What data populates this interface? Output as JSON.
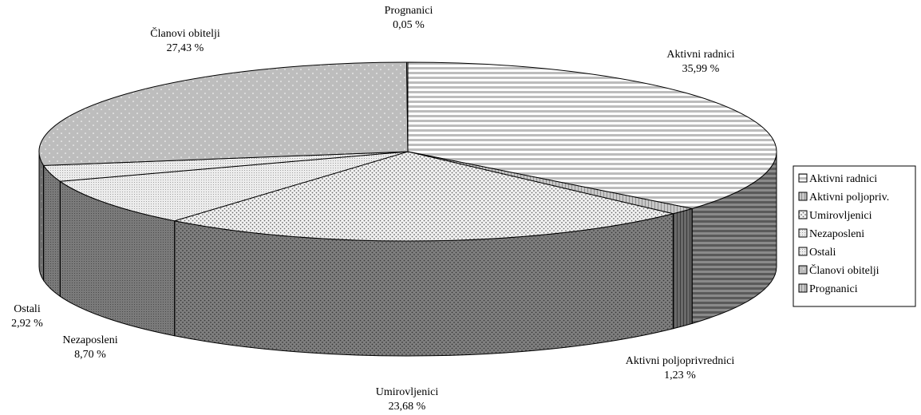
{
  "chart_data": {
    "type": "pie",
    "style": "3d-exploded-tilt",
    "title": "",
    "categories": [
      "Aktivni radnici",
      "Aktivni poljopriv.",
      "Umirovljenici",
      "Nezaposleni",
      "Ostali",
      "Članovi obitelji",
      "Prognanici"
    ],
    "values": [
      35.99,
      1.23,
      23.68,
      8.7,
      2.92,
      27.43,
      0.05
    ],
    "slice_labels": [
      {
        "name": "Aktivni  radnici",
        "value_text": "35,99 %"
      },
      {
        "name": "Aktivni  poljoprivrednici",
        "value_text": "1,23 %"
      },
      {
        "name": "Umirovljenici",
        "value_text": "23,68 %"
      },
      {
        "name": "Nezaposleni",
        "value_text": "8,70 %"
      },
      {
        "name": "Ostali",
        "value_text": "2,92 %"
      },
      {
        "name": "Članovi obitelji",
        "value_text": "27,43 %"
      },
      {
        "name": "Prognanici",
        "value_text": "0,05 %"
      }
    ],
    "legend": {
      "placement": "right",
      "entries": [
        "Aktivni  radnici",
        "Aktivni poljopriv.",
        "Umirovljenici",
        "Nezaposleni",
        "Ostali",
        "Članovi obitelji",
        "Prognanici"
      ]
    },
    "colors": {
      "top_fill": "#cfcfcf",
      "side_fill": "#7a7a7a",
      "nezaposleni_top": "#e6e6e6",
      "umirovljenici_top": "#ececec",
      "clanovi_top": "#bdbdbd",
      "stroke": "#000000"
    }
  }
}
